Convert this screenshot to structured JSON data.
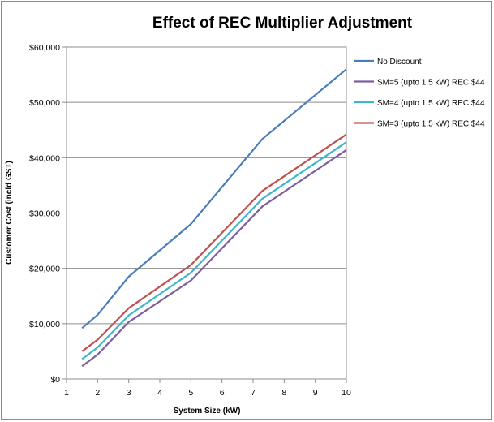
{
  "chart_data": {
    "type": "line",
    "title": "Effect of REC Multiplier Adjustment",
    "xlabel": "System Size (kW)",
    "ylabel": "Customer Cost (incld GST)",
    "xlim": [
      1,
      10
    ],
    "ylim": [
      0,
      60000
    ],
    "x_ticks": [
      "1",
      "2",
      "3",
      "4",
      "5",
      "6",
      "7",
      "8",
      "9",
      "10"
    ],
    "y_ticks": [
      "$0",
      "$10,000",
      "$20,000",
      "$30,000",
      "$40,000",
      "$50,000",
      "$60,000"
    ],
    "grid": "horizontal",
    "legend_position": "right",
    "series": [
      {
        "name": "No Discount",
        "color": "#4a7ebb",
        "points": [
          [
            1.5,
            9200
          ],
          [
            2,
            11600
          ],
          [
            3,
            18500
          ],
          [
            5,
            28000
          ],
          [
            7.3,
            43400
          ],
          [
            10,
            56000
          ]
        ]
      },
      {
        "name": "SM=5 (upto 1.5 kW) REC $44",
        "color": "#7d5fa0",
        "points": [
          [
            1.5,
            2300
          ],
          [
            2,
            4400
          ],
          [
            3,
            10300
          ],
          [
            5,
            17800
          ],
          [
            7.3,
            31200
          ],
          [
            10,
            41400
          ]
        ]
      },
      {
        "name": "SM=4 (upto 1.5 kW) REC $44",
        "color": "#3eb6c6",
        "points": [
          [
            1.5,
            3600
          ],
          [
            2,
            5700
          ],
          [
            3,
            11500
          ],
          [
            5,
            19200
          ],
          [
            7.3,
            32600
          ],
          [
            10,
            42800
          ]
        ]
      },
      {
        "name": "SM=3 (upto 1.5 kW) REC $44",
        "color": "#c0504d",
        "points": [
          [
            1.5,
            5000
          ],
          [
            2,
            7100
          ],
          [
            3,
            12800
          ],
          [
            5,
            20600
          ],
          [
            7.3,
            34000
          ],
          [
            10,
            44200
          ]
        ]
      }
    ]
  }
}
